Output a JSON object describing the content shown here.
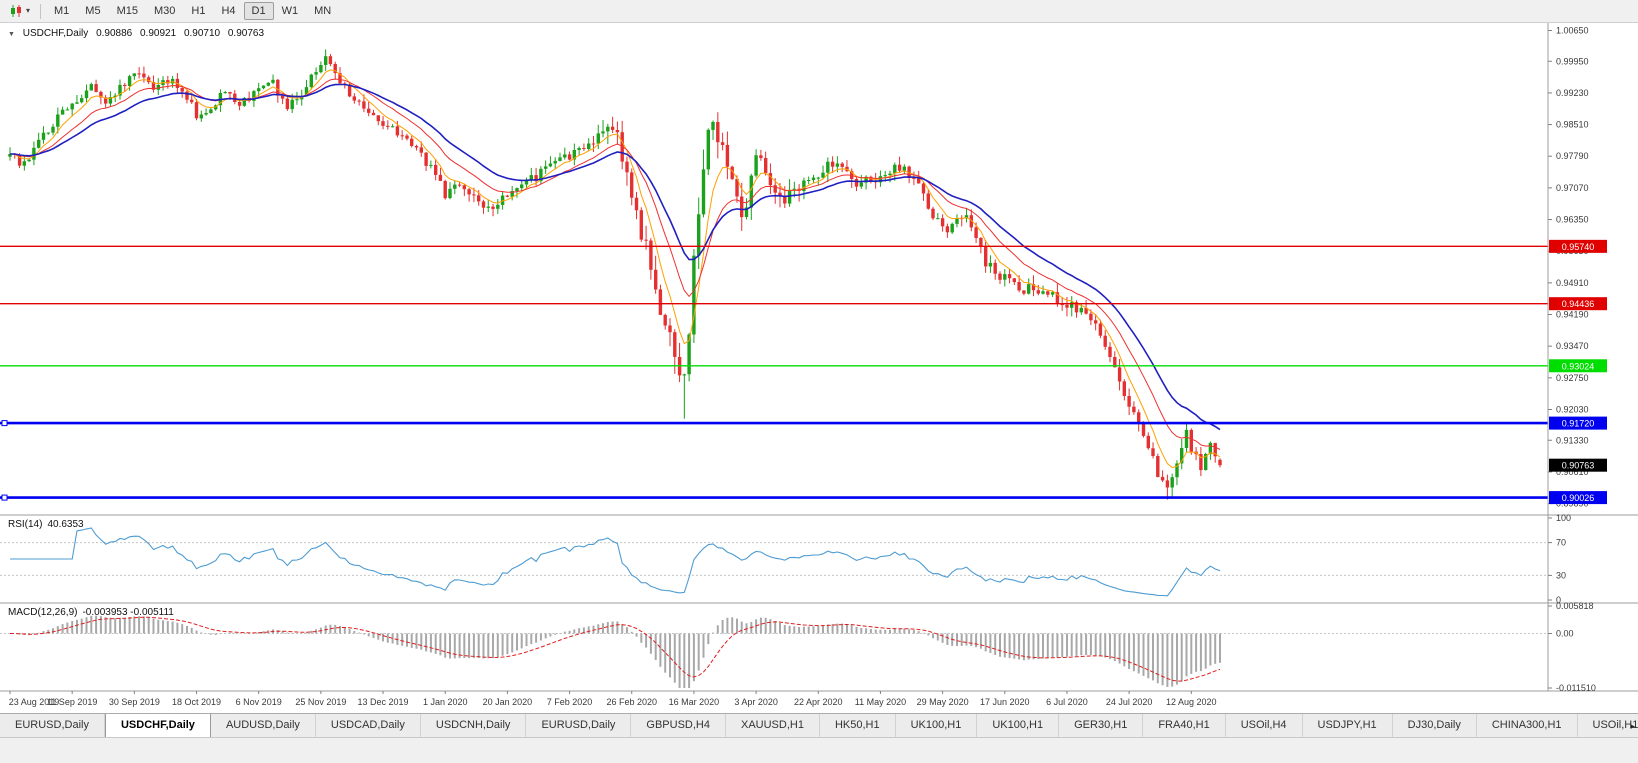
{
  "toolbar": {
    "chart_type_caret": "▾",
    "timeframes": [
      "M1",
      "M5",
      "M15",
      "M30",
      "H1",
      "H4",
      "D1",
      "W1",
      "MN"
    ],
    "active_timeframe": "D1"
  },
  "chart": {
    "collapse_icon": "▼",
    "symbol_period": "USDCHF,Daily",
    "readout": {
      "open": "0.90886",
      "high": "0.90921",
      "low": "0.90710",
      "close": "0.90763"
    },
    "price_axis_labels": [
      "1.00650",
      "0.99950",
      "0.99230",
      "0.98510",
      "0.97790",
      "0.97070",
      "0.96350",
      "0.95630",
      "0.94910",
      "0.94190",
      "0.93470",
      "0.92750",
      "0.92030",
      "0.91330",
      "0.90610",
      "0.89890"
    ],
    "levels": [
      {
        "label": "0.95740",
        "price": 0.9574,
        "color": "#E00000",
        "width": 1.4,
        "handles": false
      },
      {
        "label": "0.94436",
        "price": 0.94436,
        "color": "#E00000",
        "width": 1.4,
        "handles": false
      },
      {
        "label": "0.93024",
        "price": 0.93024,
        "color": "#00DD00",
        "width": 1.4,
        "handles": false
      },
      {
        "label": "0.91720",
        "price": 0.9172,
        "color": "#0000F0",
        "width": 2.6,
        "handles": true
      },
      {
        "label": "0.90026",
        "price": 0.90026,
        "color": "#0000F0",
        "width": 2.6,
        "handles": true
      }
    ],
    "current_price": {
      "label": "0.90763",
      "price": 0.90763,
      "bg": "#000000",
      "fg": "#FFFFFF"
    },
    "date_labels": [
      "23 Aug 2019",
      "11 Sep 2019",
      "30 Sep 2019",
      "18 Oct 2019",
      "6 Nov 2019",
      "25 Nov 2019",
      "13 Dec 2019",
      "1 Jan 2020",
      "20 Jan 2020",
      "7 Feb 2020",
      "26 Feb 2020",
      "16 Mar 2020",
      "3 Apr 2020",
      "22 Apr 2020",
      "11 May 2020",
      "29 May 2020",
      "17 Jun 2020",
      "6 Jul 2020",
      "24 Jul 2020",
      "12 Aug 2020"
    ]
  },
  "rsi_panel": {
    "name": "RSI(14)",
    "value": "40.6353",
    "axis_labels": [
      "100",
      "70",
      "30",
      "0"
    ],
    "line_color": "#4E9CD2"
  },
  "macd_panel": {
    "name": "MACD(12,26,9)",
    "values": "-0.003953 -0.005111",
    "axis_labels": [
      "0.005818",
      "0.00",
      "-0.011510"
    ]
  },
  "tabs": {
    "active_index": 1,
    "items": [
      "EURUSD,Daily",
      "USDCHF,Daily",
      "AUDUSD,Daily",
      "USDCAD,Daily",
      "USDCNH,Daily",
      "EURUSD,Daily",
      "GBPUSD,H4",
      "XAUUSD,H1",
      "HK50,H1",
      "UK100,H1",
      "UK100,H1",
      "GER30,H1",
      "FRA40,H1",
      "USOil,H4",
      "USDJPY,H1",
      "DJ30,Daily",
      "CHINA300,H1",
      "USOil,H1"
    ],
    "scroll_icon": "▸"
  },
  "chart_data": {
    "type": "candlestick",
    "symbol": "USDCHF",
    "period": "Daily",
    "bars": 254,
    "bars_per_label": 13,
    "seed": 20200821,
    "price_pane": {
      "top": 1.0082,
      "bottom": 0.8963
    },
    "up_color": "#1BA11B",
    "down_color": "#E43030",
    "close_anchors": [
      [
        0,
        0.9778
      ],
      [
        3,
        0.976
      ],
      [
        6,
        0.9812
      ],
      [
        10,
        0.9868
      ],
      [
        13,
        0.9898
      ],
      [
        17,
        0.9932
      ],
      [
        20,
        0.9906
      ],
      [
        24,
        0.9944
      ],
      [
        27,
        0.9962
      ],
      [
        30,
        0.9928
      ],
      [
        34,
        0.9958
      ],
      [
        37,
        0.9912
      ],
      [
        39,
        0.9872
      ],
      [
        42,
        0.9896
      ],
      [
        45,
        0.9924
      ],
      [
        48,
        0.9892
      ],
      [
        52,
        0.9928
      ],
      [
        55,
        0.9942
      ],
      [
        58,
        0.9886
      ],
      [
        61,
        0.9916
      ],
      [
        64,
        0.9972
      ],
      [
        66,
        1.0002
      ],
      [
        68,
        0.9978
      ],
      [
        70,
        0.9932
      ],
      [
        73,
        0.9898
      ],
      [
        76,
        0.9872
      ],
      [
        79,
        0.9846
      ],
      [
        82,
        0.9822
      ],
      [
        85,
        0.9796
      ],
      [
        88,
        0.9752
      ],
      [
        91,
        0.9692
      ],
      [
        94,
        0.9716
      ],
      [
        97,
        0.9688
      ],
      [
        99,
        0.9662
      ],
      [
        102,
        0.9674
      ],
      [
        104,
        0.9688
      ],
      [
        107,
        0.9712
      ],
      [
        110,
        0.9734
      ],
      [
        113,
        0.9756
      ],
      [
        116,
        0.9772
      ],
      [
        119,
        0.9794
      ],
      [
        122,
        0.9818
      ],
      [
        125,
        0.9846
      ],
      [
        127,
        0.983
      ],
      [
        129,
        0.9738
      ],
      [
        131,
        0.9636
      ],
      [
        133,
        0.9562
      ],
      [
        135,
        0.9468
      ],
      [
        137,
        0.9392
      ],
      [
        139,
        0.9318
      ],
      [
        141,
        0.9262
      ],
      [
        142,
        0.9388
      ],
      [
        143,
        0.9564
      ],
      [
        144,
        0.9668
      ],
      [
        145,
        0.9762
      ],
      [
        146,
        0.9822
      ],
      [
        147,
        0.9868
      ],
      [
        148,
        0.9836
      ],
      [
        150,
        0.9742
      ],
      [
        152,
        0.9664
      ],
      [
        153,
        0.9618
      ],
      [
        155,
        0.9716
      ],
      [
        156,
        0.9776
      ],
      [
        158,
        0.9742
      ],
      [
        160,
        0.9704
      ],
      [
        162,
        0.9682
      ],
      [
        164,
        0.9698
      ],
      [
        166,
        0.9716
      ],
      [
        168,
        0.9736
      ],
      [
        170,
        0.9748
      ],
      [
        173,
        0.9766
      ],
      [
        175,
        0.9744
      ],
      [
        177,
        0.9716
      ],
      [
        180,
        0.9726
      ],
      [
        182,
        0.9738
      ],
      [
        184,
        0.9748
      ],
      [
        186,
        0.9756
      ],
      [
        188,
        0.9738
      ],
      [
        190,
        0.9718
      ],
      [
        192,
        0.9668
      ],
      [
        194,
        0.9628
      ],
      [
        196,
        0.9608
      ],
      [
        198,
        0.9632
      ],
      [
        200,
        0.9648
      ],
      [
        202,
        0.9592
      ],
      [
        204,
        0.9536
      ],
      [
        206,
        0.9518
      ],
      [
        208,
        0.9504
      ],
      [
        210,
        0.9488
      ],
      [
        212,
        0.9476
      ],
      [
        214,
        0.9472
      ],
      [
        216,
        0.9466
      ],
      [
        218,
        0.9456
      ],
      [
        220,
        0.9446
      ],
      [
        222,
        0.9436
      ],
      [
        224,
        0.9422
      ],
      [
        226,
        0.9402
      ],
      [
        228,
        0.9382
      ],
      [
        230,
        0.9322
      ],
      [
        232,
        0.9252
      ],
      [
        234,
        0.9208
      ],
      [
        236,
        0.9158
      ],
      [
        238,
        0.9108
      ],
      [
        240,
        0.9062
      ],
      [
        242,
        0.9018
      ],
      [
        244,
        0.9072
      ],
      [
        246,
        0.9146
      ],
      [
        248,
        0.9092
      ],
      [
        249,
        0.9062
      ],
      [
        251,
        0.9128
      ],
      [
        253,
        0.90763
      ]
    ],
    "volatility_anchors": [
      [
        0,
        0.0021
      ],
      [
        120,
        0.0021
      ],
      [
        128,
        0.0046
      ],
      [
        147,
        0.0058
      ],
      [
        156,
        0.0034
      ],
      [
        190,
        0.0022
      ],
      [
        228,
        0.0028
      ],
      [
        253,
        0.0026
      ]
    ],
    "forced_bars": {
      "141": {
        "low": 0.9182
      },
      "242": {
        "low": 0.8998
      },
      "253": {
        "open": 0.90886,
        "high": 0.90921,
        "low": 0.9071,
        "close": 0.90763
      }
    },
    "moving_averages": [
      {
        "type": "ema",
        "period": 6,
        "color": "#FFA000",
        "width": 1
      },
      {
        "type": "ema",
        "period": 14,
        "color": "#F03030",
        "width": 1
      },
      {
        "type": "ema",
        "period": 24,
        "color": "#2020C0",
        "width": 1.6
      }
    ],
    "rsi": {
      "period": 14,
      "current": 40.6353,
      "range": [
        0,
        100
      ],
      "guides": [
        70,
        30
      ]
    },
    "macd": {
      "fast": 12,
      "slow": 26,
      "signal": 9,
      "current_main": -0.003953,
      "current_signal": -0.005111,
      "range": [
        0.005818,
        -0.01151
      ],
      "hist_color": "#A8A8A8",
      "signal_color": "#E02020"
    }
  }
}
